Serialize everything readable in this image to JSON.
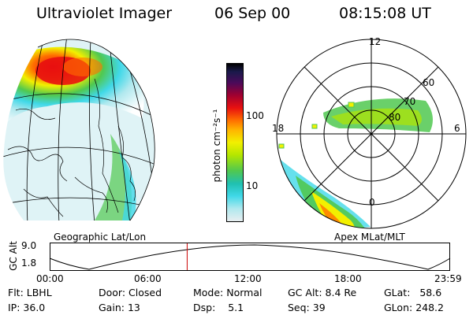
{
  "header": {
    "instrument": "Ultraviolet Imager",
    "date": "06 Sep 00",
    "time": "08:15:08 UT"
  },
  "colorbar": {
    "unit_label": "photon cm⁻²s⁻¹",
    "ticks": [
      "100",
      "10"
    ],
    "colors": [
      "#000000",
      "#1a1a4a",
      "#4a0a5a",
      "#a00030",
      "#e81010",
      "#ff7000",
      "#ffb400",
      "#f2f000",
      "#b4e600",
      "#50c850",
      "#20c0b0",
      "#40d8e8",
      "#b0e8ee",
      "#e8eef0"
    ]
  },
  "maps": {
    "left_label": "Geographic Lat/Lon",
    "right_label": "Apex MLat/MLT",
    "polar": {
      "mlt_labels": [
        "12",
        "18",
        "6",
        "0"
      ],
      "lat_labels": [
        "60",
        "70",
        "80"
      ]
    }
  },
  "altitude_plot": {
    "y_label": "GC Alt",
    "y_ticks": [
      "9.0",
      "1.8"
    ],
    "x_ticks": [
      "00:00",
      "06:00",
      "12:00",
      "18:00",
      "23:59"
    ],
    "current_time_fraction": 0.344,
    "marker_color": "#cc0000"
  },
  "status": {
    "filter": {
      "label": "Flt:",
      "value": "LBHL"
    },
    "door": {
      "label": "Door:",
      "value": "Closed"
    },
    "mode": {
      "label": "Mode:",
      "value": "Normal"
    },
    "gc_alt": {
      "label": "GC Alt:",
      "value": "8.4 Re"
    },
    "glat": {
      "label": "GLat:",
      "value": "58.6"
    },
    "ip": {
      "label": "IP:",
      "value": "36.0"
    },
    "gain": {
      "label": "Gain:",
      "value": "13"
    },
    "dsp": {
      "label": "Dsp:",
      "value": "5.1"
    },
    "seq": {
      "label": "Seq:",
      "value": "39"
    },
    "glon": {
      "label": "GLon:",
      "value": "248.2"
    }
  }
}
